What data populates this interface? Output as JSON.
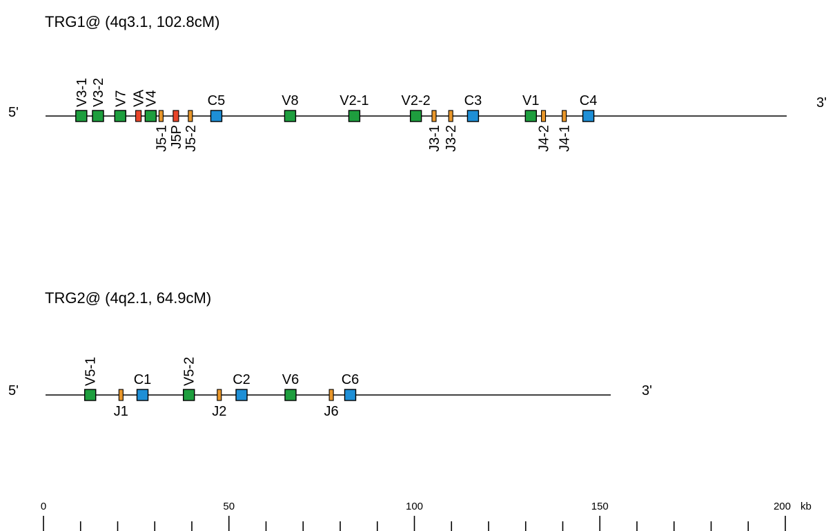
{
  "colors": {
    "V": "#1e9e3e",
    "C": "#1e8fd6",
    "J": "#e8962a",
    "pseudo": "#e8452a",
    "outline": "#000000",
    "line": "#000000"
  },
  "loci": [
    {
      "title": "TRG1@ (4q3.1, 102.8cM)",
      "end5": "5'",
      "end3": "3'",
      "length_kb": 200,
      "genes": [
        {
          "name": "V3-1",
          "type": "V",
          "pos_kb": 10.2,
          "label": "above-rotated"
        },
        {
          "name": "V3-2",
          "type": "V",
          "pos_kb": 14.7,
          "label": "above-rotated"
        },
        {
          "name": "V7",
          "type": "V",
          "pos_kb": 20.7,
          "label": "above-rotated"
        },
        {
          "name": "VA",
          "type": "pseudo",
          "pos_kb": 25.6,
          "label": "above-rotated"
        },
        {
          "name": "V4",
          "type": "V",
          "pos_kb": 28.9,
          "label": "above-rotated"
        },
        {
          "name": "J5-1",
          "type": "J",
          "pos_kb": 31.7,
          "label": "below-rotated"
        },
        {
          "name": "J5P",
          "type": "pseudo",
          "pos_kb": 35.7,
          "label": "below-rotated"
        },
        {
          "name": "J5-2",
          "type": "J",
          "pos_kb": 39.6,
          "label": "below-rotated"
        },
        {
          "name": "C5",
          "type": "C",
          "pos_kb": 46.6,
          "label": "above"
        },
        {
          "name": "V8",
          "type": "V",
          "pos_kb": 66.5,
          "label": "above"
        },
        {
          "name": "V2-1",
          "type": "V",
          "pos_kb": 83.8,
          "label": "above"
        },
        {
          "name": "V2-2",
          "type": "V",
          "pos_kb": 100.4,
          "label": "above"
        },
        {
          "name": "J3-1",
          "type": "J",
          "pos_kb": 105.3,
          "label": "below-rotated"
        },
        {
          "name": "J3-2",
          "type": "J",
          "pos_kb": 109.8,
          "label": "below-rotated"
        },
        {
          "name": "C3",
          "type": "C",
          "pos_kb": 115.8,
          "label": "above"
        },
        {
          "name": "V1",
          "type": "V",
          "pos_kb": 131.4,
          "label": "above"
        },
        {
          "name": "J4-2",
          "type": "J",
          "pos_kb": 134.8,
          "label": "below-rotated"
        },
        {
          "name": "J4-1",
          "type": "J",
          "pos_kb": 140.4,
          "label": "below-rotated"
        },
        {
          "name": "C4",
          "type": "C",
          "pos_kb": 146.9,
          "label": "above"
        }
      ]
    },
    {
      "title": "TRG2@ (4q2.1, 64.9cM)",
      "end5": "5'",
      "end3": "3'",
      "length_kb": 153,
      "genes": [
        {
          "name": "V5-1",
          "type": "V",
          "pos_kb": 12.6,
          "label": "above-rotated"
        },
        {
          "name": "J1",
          "type": "J",
          "pos_kb": 20.9,
          "label": "below"
        },
        {
          "name": "C1",
          "type": "C",
          "pos_kb": 26.7,
          "label": "above"
        },
        {
          "name": "V5-2",
          "type": "V",
          "pos_kb": 39.2,
          "label": "above-rotated"
        },
        {
          "name": "J2",
          "type": "J",
          "pos_kb": 47.4,
          "label": "below"
        },
        {
          "name": "C2",
          "type": "C",
          "pos_kb": 53.4,
          "label": "above"
        },
        {
          "name": "V6",
          "type": "V",
          "pos_kb": 66.6,
          "label": "above"
        },
        {
          "name": "J6",
          "type": "J",
          "pos_kb": 77.6,
          "label": "below"
        },
        {
          "name": "C6",
          "type": "C",
          "pos_kb": 82.7,
          "label": "above"
        }
      ]
    }
  ],
  "scale": {
    "max_kb": 200,
    "minor_step_kb": 10,
    "labels": [
      {
        "kb": 0,
        "text": "0"
      },
      {
        "kb": 50,
        "text": "50"
      },
      {
        "kb": 100,
        "text": "100"
      },
      {
        "kb": 150,
        "text": "150"
      },
      {
        "kb": 200,
        "text": "200"
      }
    ],
    "unit": "kb"
  }
}
